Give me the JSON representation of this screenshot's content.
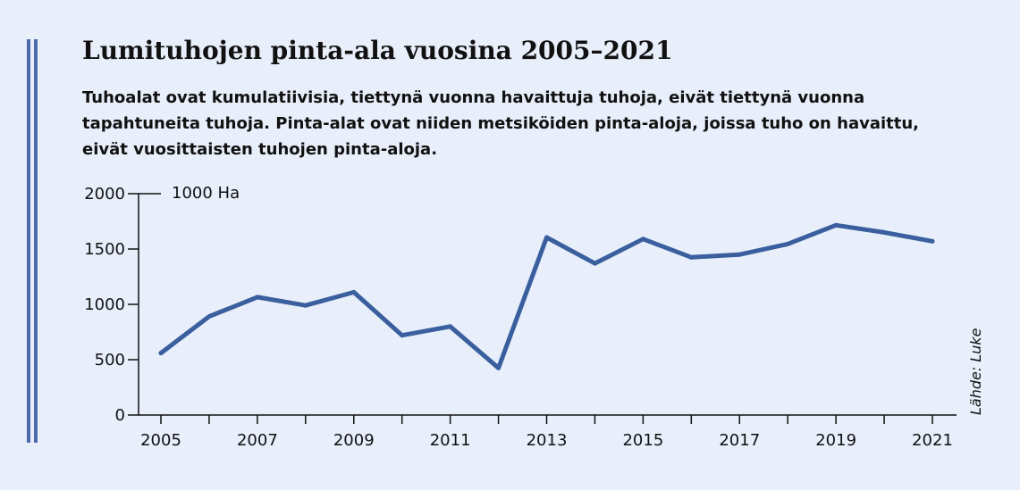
{
  "title": "Lumituhojen pinta-ala vuosina 2005–2021",
  "subtitle": "Tuhoalat ovat kumulatiivisia, tiettynä vuonna havaittuja tuhoja, eivät tiettynä vuonna tapahtuneita tuhoja. Pinta-alat ovat niiden metsiköiden pinta-aloja, joissa tuho on havaittu, eivät vuosittaisten tuhojen pinta-aloja.",
  "source": "Lähde: Luke",
  "colors": {
    "background": "#e8eefa",
    "line": "#3a5f9e",
    "accent": "#4a6aaa"
  },
  "chart_data": {
    "type": "line",
    "title": "Lumituhojen pinta-ala vuosina 2005–2021",
    "ylabel": "1000 Ha",
    "xlabel": "",
    "x": [
      2005,
      2006,
      2007,
      2008,
      2009,
      2010,
      2011,
      2012,
      2013,
      2014,
      2015,
      2016,
      2017,
      2018,
      2019,
      2020,
      2021
    ],
    "values": [
      560,
      890,
      1065,
      990,
      1110,
      720,
      800,
      425,
      1605,
      1370,
      1590,
      1425,
      1450,
      1545,
      1715,
      1650,
      1570
    ],
    "xticks": [
      "2005",
      "2007",
      "2009",
      "2011",
      "2013",
      "2015",
      "2017",
      "2019",
      "2021"
    ],
    "yticks": [
      "0",
      "500",
      "1000",
      "1500",
      "2000"
    ],
    "ylim": [
      0,
      2000
    ],
    "grid": false
  }
}
